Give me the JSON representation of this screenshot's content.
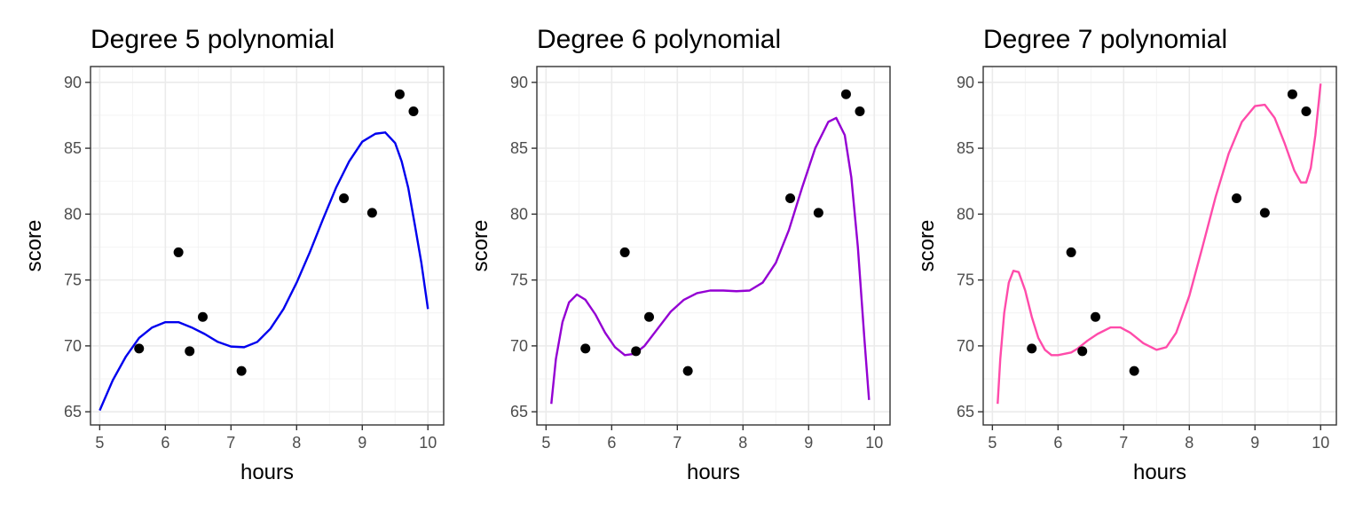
{
  "chart_data": [
    {
      "type": "scatter",
      "title": "Degree 5 polynomial",
      "xlabel": "hours",
      "ylabel": "score",
      "xlim": [
        4.86,
        10.24
      ],
      "ylim": [
        64.0,
        91.2
      ],
      "xticks": [
        "5",
        "6",
        "7",
        "8",
        "9",
        "10"
      ],
      "yticks": [
        "65",
        "70",
        "75",
        "80",
        "85",
        "90"
      ],
      "grid": true,
      "color": "#0000EE",
      "points": {
        "x": [
          5.6,
          6.2,
          6.37,
          6.57,
          7.16,
          8.72,
          9.15,
          9.57,
          9.78
        ],
        "y": [
          69.8,
          77.1,
          69.6,
          72.2,
          68.1,
          81.2,
          80.1,
          89.1,
          87.8
        ]
      },
      "curve": {
        "x": [
          5.0,
          5.2,
          5.4,
          5.6,
          5.8,
          6.0,
          6.2,
          6.4,
          6.6,
          6.8,
          7.0,
          7.2,
          7.4,
          7.6,
          7.8,
          8.0,
          8.2,
          8.4,
          8.6,
          8.8,
          9.0,
          9.2,
          9.35,
          9.5,
          9.6,
          9.7,
          9.8,
          9.9,
          10.0
        ],
        "y": [
          65.1,
          67.4,
          69.2,
          70.6,
          71.4,
          71.8,
          71.8,
          71.4,
          70.9,
          70.3,
          69.95,
          69.9,
          70.3,
          71.3,
          72.8,
          74.8,
          77.1,
          79.6,
          82.0,
          84.0,
          85.5,
          86.1,
          86.2,
          85.4,
          84.0,
          82.0,
          79.2,
          76.3,
          72.8
        ]
      }
    },
    {
      "type": "scatter",
      "title": "Degree 6 polynomial",
      "xlabel": "hours",
      "ylabel": "score",
      "xlim": [
        4.86,
        10.24
      ],
      "ylim": [
        64.0,
        91.2
      ],
      "xticks": [
        "5",
        "6",
        "7",
        "8",
        "9",
        "10"
      ],
      "yticks": [
        "65",
        "70",
        "75",
        "80",
        "85",
        "90"
      ],
      "grid": true,
      "color": "#9400D3",
      "points": {
        "x": [
          5.6,
          6.2,
          6.37,
          6.57,
          7.16,
          8.72,
          9.15,
          9.57,
          9.78
        ],
        "y": [
          69.8,
          77.1,
          69.6,
          72.2,
          68.1,
          81.2,
          80.1,
          89.1,
          87.8
        ]
      },
      "curve": {
        "x": [
          5.08,
          5.15,
          5.25,
          5.35,
          5.47,
          5.6,
          5.75,
          5.9,
          6.05,
          6.2,
          6.35,
          6.5,
          6.7,
          6.9,
          7.1,
          7.3,
          7.5,
          7.7,
          7.9,
          8.1,
          8.3,
          8.5,
          8.7,
          8.9,
          9.1,
          9.3,
          9.42,
          9.55,
          9.65,
          9.75,
          9.85,
          9.92
        ],
        "y": [
          65.6,
          69.0,
          71.8,
          73.3,
          73.9,
          73.5,
          72.4,
          71.0,
          69.9,
          69.3,
          69.4,
          70.0,
          71.3,
          72.6,
          73.5,
          74.0,
          74.2,
          74.2,
          74.15,
          74.2,
          74.8,
          76.3,
          78.8,
          82.0,
          85.0,
          87.0,
          87.3,
          86.0,
          82.8,
          77.5,
          70.5,
          65.9
        ]
      }
    },
    {
      "type": "scatter",
      "title": "Degree 7 polynomial",
      "xlabel": "hours",
      "ylabel": "score",
      "xlim": [
        4.86,
        10.24
      ],
      "ylim": [
        64.0,
        91.2
      ],
      "xticks": [
        "5",
        "6",
        "7",
        "8",
        "9",
        "10"
      ],
      "yticks": [
        "65",
        "70",
        "75",
        "80",
        "85",
        "90"
      ],
      "grid": true,
      "color": "#FF4BAA",
      "points": {
        "x": [
          5.6,
          6.2,
          6.37,
          6.57,
          7.16,
          8.72,
          9.15,
          9.57,
          9.78
        ],
        "y": [
          69.8,
          77.1,
          69.6,
          72.2,
          68.1,
          81.2,
          80.1,
          89.1,
          87.8
        ]
      },
      "curve": {
        "x": [
          5.08,
          5.12,
          5.18,
          5.25,
          5.32,
          5.4,
          5.5,
          5.6,
          5.7,
          5.8,
          5.9,
          6.0,
          6.1,
          6.2,
          6.3,
          6.45,
          6.6,
          6.8,
          6.95,
          7.1,
          7.3,
          7.5,
          7.65,
          7.8,
          8.0,
          8.2,
          8.4,
          8.6,
          8.8,
          9.0,
          9.15,
          9.3,
          9.45,
          9.6,
          9.7,
          9.78,
          9.85,
          9.92,
          10.0
        ],
        "y": [
          65.6,
          69.0,
          72.5,
          74.8,
          75.7,
          75.6,
          74.2,
          72.2,
          70.6,
          69.7,
          69.3,
          69.3,
          69.4,
          69.5,
          69.8,
          70.4,
          70.9,
          71.4,
          71.4,
          71.0,
          70.2,
          69.7,
          69.9,
          71.0,
          73.8,
          77.5,
          81.3,
          84.6,
          87.0,
          88.2,
          88.3,
          87.3,
          85.4,
          83.3,
          82.4,
          82.4,
          83.5,
          86.0,
          89.9
        ]
      }
    }
  ]
}
